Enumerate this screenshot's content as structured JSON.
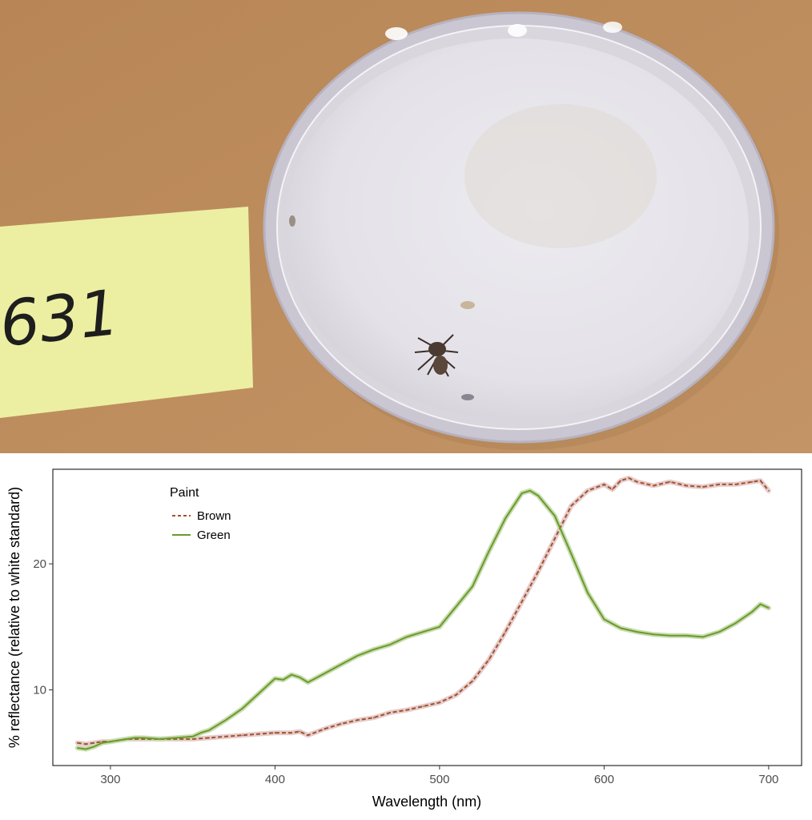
{
  "photo": {
    "note_label": "631",
    "colors": {
      "table": "#bd8c5c",
      "note": "#ecefa1",
      "dish_rim": "#c4c0cc",
      "dish_floor": "#e6e4ea",
      "spider": "#4a3a32"
    }
  },
  "chart_data": {
    "type": "line",
    "title": "",
    "xlabel": "Wavelength (nm)",
    "ylabel": "% reflectance (relative to white standard)",
    "xlim": [
      265,
      720
    ],
    "ylim": [
      4,
      27.5
    ],
    "xticks": [
      300,
      400,
      500,
      600,
      700
    ],
    "yticks": [
      10,
      20
    ],
    "grid": false,
    "legend": {
      "title": "Paint",
      "placement": "top-left"
    },
    "series": [
      {
        "name": "Brown",
        "color": "#a0522d",
        "ribbon_color": "#e6cccc",
        "line_style": "dashed",
        "x": [
          280,
          285,
          290,
          295,
          300,
          305,
          310,
          315,
          320,
          330,
          340,
          350,
          360,
          370,
          380,
          390,
          400,
          410,
          415,
          420,
          430,
          440,
          450,
          460,
          470,
          480,
          490,
          500,
          510,
          520,
          530,
          540,
          550,
          560,
          570,
          580,
          590,
          600,
          605,
          610,
          615,
          620,
          630,
          640,
          650,
          660,
          670,
          680,
          690,
          695,
          700
        ],
        "values": [
          5.8,
          5.7,
          5.8,
          5.9,
          5.9,
          6.0,
          6.1,
          6.1,
          6.1,
          6.1,
          6.1,
          6.1,
          6.2,
          6.3,
          6.4,
          6.5,
          6.6,
          6.6,
          6.7,
          6.4,
          6.9,
          7.3,
          7.6,
          7.8,
          8.2,
          8.4,
          8.7,
          9.0,
          9.6,
          10.7,
          12.4,
          14.6,
          17.0,
          19.4,
          22.0,
          24.6,
          25.8,
          26.3,
          25.9,
          26.6,
          26.8,
          26.5,
          26.2,
          26.5,
          26.2,
          26.1,
          26.3,
          26.3,
          26.5,
          26.6,
          25.8
        ]
      },
      {
        "name": "Green",
        "color": "#6b9a2a",
        "ribbon_color": "#c8dcb0",
        "line_style": "solid",
        "x": [
          280,
          285,
          290,
          295,
          300,
          305,
          310,
          315,
          320,
          330,
          340,
          350,
          355,
          360,
          370,
          380,
          390,
          400,
          405,
          410,
          415,
          420,
          430,
          440,
          450,
          460,
          470,
          480,
          490,
          500,
          510,
          520,
          530,
          540,
          550,
          555,
          560,
          570,
          580,
          590,
          600,
          610,
          620,
          630,
          640,
          650,
          660,
          670,
          680,
          690,
          695,
          700
        ],
        "values": [
          5.4,
          5.3,
          5.5,
          5.8,
          5.9,
          6.0,
          6.1,
          6.2,
          6.2,
          6.1,
          6.2,
          6.3,
          6.6,
          6.8,
          7.6,
          8.5,
          9.7,
          10.9,
          10.8,
          11.2,
          11.0,
          10.6,
          11.3,
          12.0,
          12.7,
          13.2,
          13.6,
          14.2,
          14.6,
          15.0,
          16.6,
          18.2,
          21.0,
          23.6,
          25.6,
          25.8,
          25.4,
          23.8,
          20.8,
          17.7,
          15.6,
          14.9,
          14.6,
          14.4,
          14.3,
          14.3,
          14.2,
          14.6,
          15.3,
          16.2,
          16.8,
          16.5
        ]
      }
    ]
  }
}
